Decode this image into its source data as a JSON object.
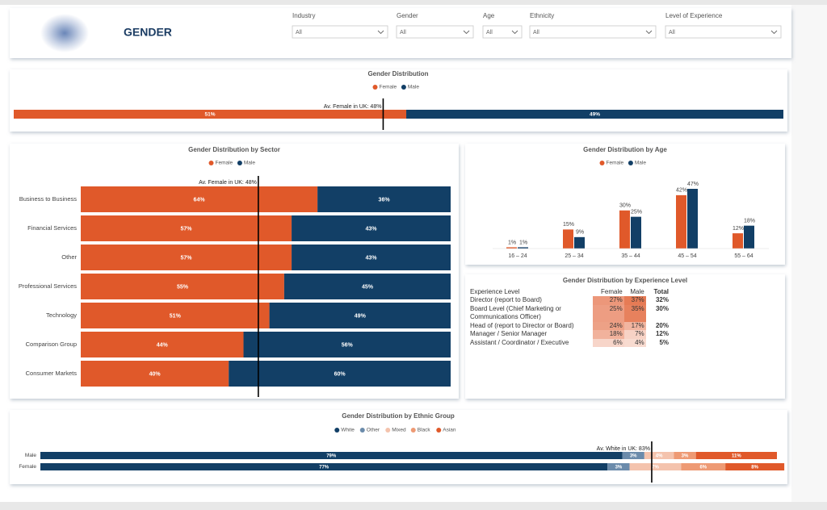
{
  "header": {
    "title": "GENDER"
  },
  "filters": [
    {
      "label": "Industry",
      "value": "All"
    },
    {
      "label": "Gender",
      "value": "All"
    },
    {
      "label": "Age",
      "value": "All"
    },
    {
      "label": "Ethnicity",
      "value": "All"
    },
    {
      "label": "Level of Experience",
      "value": "All"
    }
  ],
  "chart_data": [
    {
      "type": "stackedbar",
      "title": "Gender Distribution",
      "categories": [
        null
      ],
      "xlim": [
        0,
        100
      ],
      "series": [
        {
          "name": "Female",
          "color": "#e0592a",
          "values": [
            51
          ],
          "value_labels": [
            "51%"
          ]
        },
        {
          "name": "Male",
          "color": "#123f66",
          "values": [
            49
          ],
          "value_labels": [
            "49%"
          ]
        }
      ],
      "reference": {
        "value": 48,
        "label": "Av. Female in UK: 48%"
      }
    },
    {
      "type": "stackedbar",
      "title": "Gender Distribution by Sector",
      "categories": [
        "Business to Business",
        "Financial Services",
        "Other",
        "Professional Services",
        "Technology",
        "Comparison Group",
        "Consumer Markets"
      ],
      "xlim": [
        0,
        100
      ],
      "series": [
        {
          "name": "Female",
          "color": "#e0592a",
          "values": [
            64,
            57,
            57,
            55,
            51,
            44,
            40
          ],
          "value_labels": [
            "64%",
            "57%",
            "57%",
            "55%",
            "51%",
            "44%",
            "40%"
          ]
        },
        {
          "name": "Male",
          "color": "#123f66",
          "values": [
            36,
            43,
            43,
            45,
            49,
            56,
            60
          ],
          "value_labels": [
            "36%",
            "43%",
            "43%",
            "45%",
            "49%",
            "56%",
            "60%"
          ]
        }
      ],
      "reference": {
        "value": 48,
        "label": "Av. Female in UK: 48%"
      }
    },
    {
      "type": "groupedbar",
      "title": "Gender Distribution by Age",
      "categories": [
        "16 – 24",
        "25 – 34",
        "35 – 44",
        "45 – 54",
        "55 – 64"
      ],
      "series": [
        {
          "name": "Female",
          "color": "#e0592a",
          "values": [
            1,
            15,
            30,
            42,
            12
          ],
          "value_labels": [
            "1%",
            "15%",
            "30%",
            "42%",
            "12%"
          ]
        },
        {
          "name": "Male",
          "color": "#123f66",
          "values": [
            1,
            9,
            25,
            47,
            18
          ],
          "value_labels": [
            "1%",
            "9%",
            "25%",
            "47%",
            "18%"
          ]
        }
      ]
    },
    {
      "type": "stackedbar",
      "title": "Gender Distribution by Ethnic Group",
      "categories": [
        "Male",
        "Female"
      ],
      "xlim": [
        0,
        100
      ],
      "series": [
        {
          "name": "White",
          "color": "#123f66",
          "values": [
            79,
            77
          ],
          "value_labels": [
            "79%",
            "77%"
          ]
        },
        {
          "name": "Other",
          "color": "#6b8bab",
          "values": [
            3,
            3
          ],
          "value_labels": [
            "3%",
            "3%"
          ]
        },
        {
          "name": "Mixed",
          "color": "#f4c3ad",
          "values": [
            4,
            7
          ],
          "value_labels": [
            "4%",
            "7%"
          ]
        },
        {
          "name": "Black",
          "color": "#ee9a74",
          "values": [
            3,
            6
          ],
          "value_labels": [
            "3%",
            "6%"
          ]
        },
        {
          "name": "Asian",
          "color": "#e0592a",
          "values": [
            11,
            8
          ],
          "value_labels": [
            "11%",
            "8%"
          ]
        }
      ],
      "reference": {
        "value": 83,
        "label": "Av. White in UK: 83%"
      }
    }
  ],
  "table": {
    "title": "Gender Distribution by Experience Level",
    "columns": [
      "Experience Level",
      "Female",
      "Male",
      "Total"
    ],
    "rows": [
      [
        "Director (report to Board)",
        "27%",
        "37%",
        "32%"
      ],
      [
        "Board Level (Chief Marketing or Communications Officer)",
        "25%",
        "35%",
        "30%"
      ],
      [
        "Head of (report to Director or Board)",
        "24%",
        "17%",
        "20%"
      ],
      [
        "Manager / Senior Manager",
        "18%",
        "7%",
        "12%"
      ],
      [
        "Assistant / Coordinator / Executive",
        "6%",
        "4%",
        "5%"
      ]
    ]
  }
}
